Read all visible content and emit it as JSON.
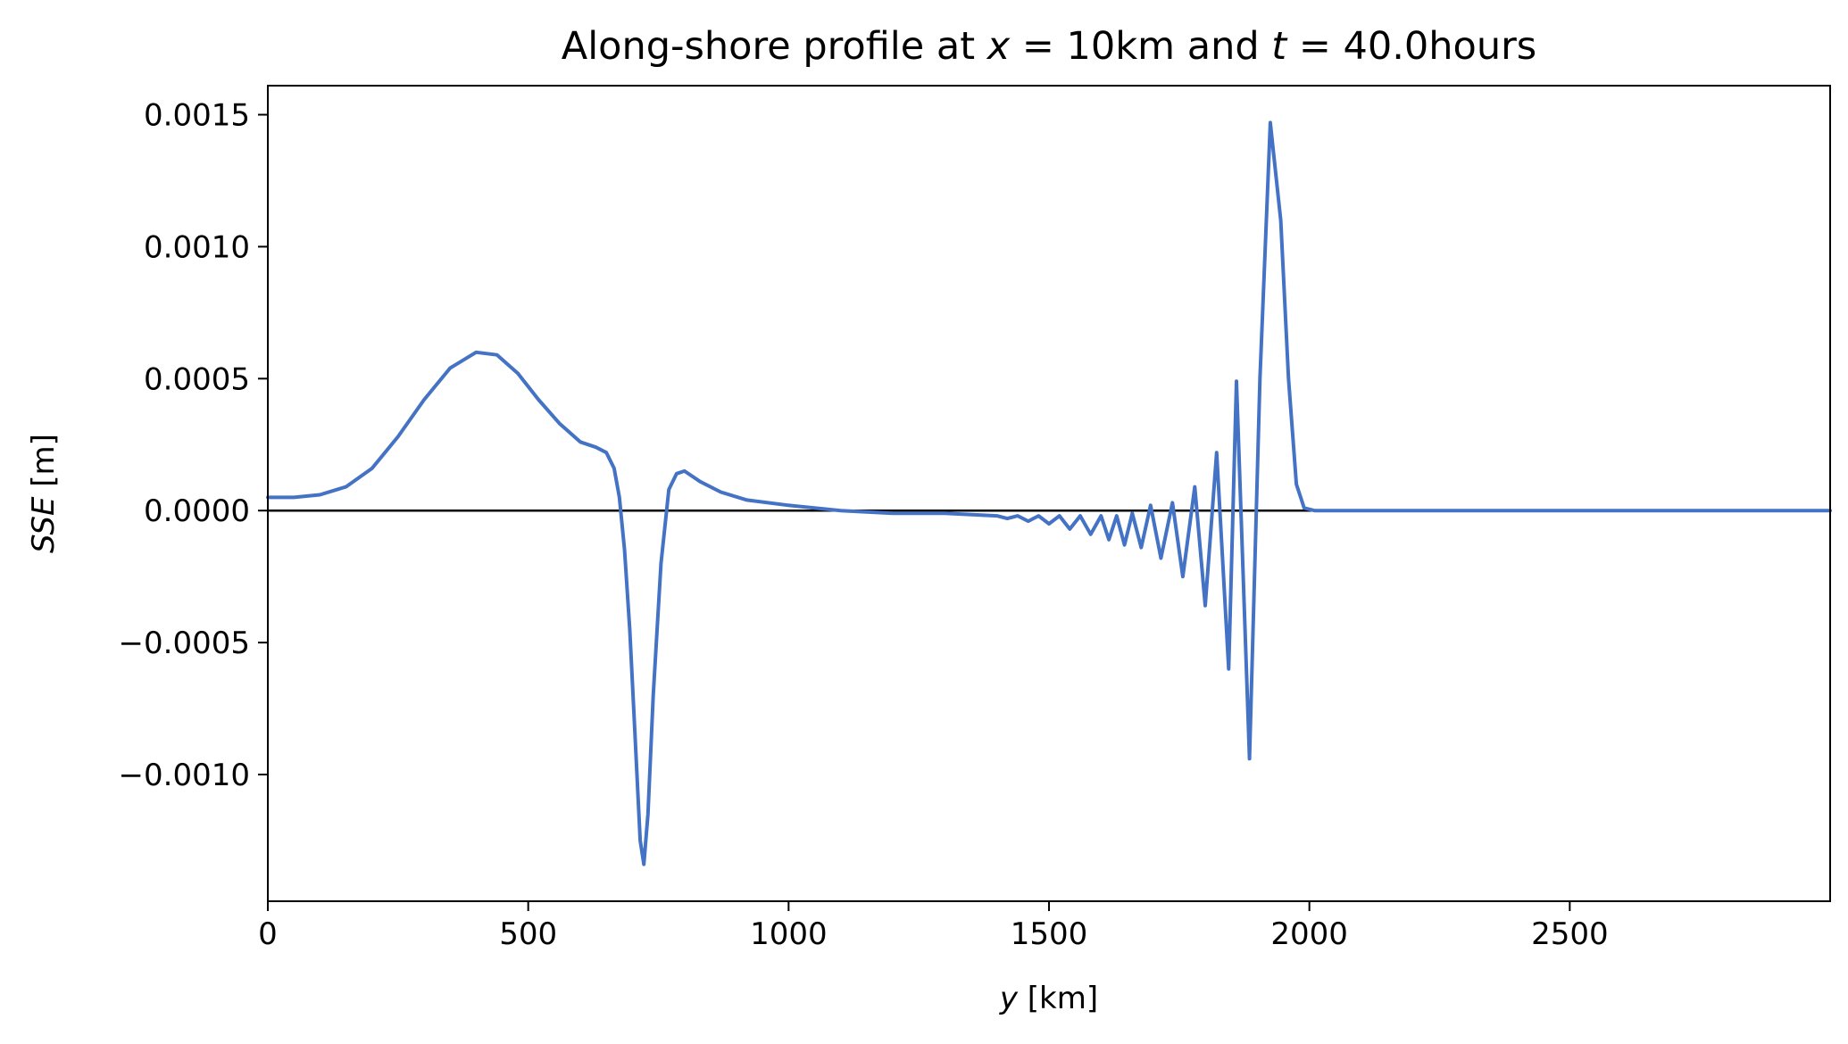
{
  "chart_data": {
    "type": "line",
    "title": {
      "prefix": "Along-shore profile at ",
      "var1": "x",
      "mid1": " = 10km and ",
      "var2": "t",
      "mid2": " = 40.0hours"
    },
    "xlabel": {
      "var": "y",
      "unit": " [km]"
    },
    "ylabel": {
      "var": "SSE",
      "unit": " [m]"
    },
    "xlim": [
      0,
      3000
    ],
    "ylim": [
      -0.00148,
      0.00161
    ],
    "xticks": [
      0,
      500,
      1000,
      1500,
      2000,
      2500
    ],
    "xtick_labels": [
      "0",
      "500",
      "1000",
      "1500",
      "2000",
      "2500"
    ],
    "yticks": [
      0.0015,
      0.001,
      0.0005,
      0.0,
      -0.0005,
      -0.001
    ],
    "ytick_labels": [
      "0.0015",
      "0.0010",
      "0.0005",
      "0.0000",
      "−0.0005",
      "−0.0010"
    ],
    "zero_line": true,
    "grid": false,
    "series": [
      {
        "color": "#4472c4",
        "x": [
          0,
          50,
          100,
          150,
          200,
          250,
          300,
          350,
          400,
          440,
          480,
          520,
          560,
          600,
          630,
          650,
          665,
          675,
          685,
          695,
          705,
          715,
          722,
          730,
          740,
          755,
          770,
          785,
          800,
          830,
          870,
          920,
          1000,
          1100,
          1200,
          1300,
          1400,
          1420,
          1440,
          1460,
          1480,
          1500,
          1520,
          1540,
          1560,
          1580,
          1600,
          1615,
          1630,
          1645,
          1660,
          1677,
          1695,
          1715,
          1737,
          1757,
          1780,
          1800,
          1822,
          1845,
          1860,
          1885,
          1905,
          1925,
          1945,
          1960,
          1975,
          1990,
          2010,
          2030,
          2050,
          2070,
          2090,
          2200,
          2400,
          2600,
          2800,
          3000
        ],
        "y": [
          5e-05,
          5e-05,
          6e-05,
          9e-05,
          0.00016,
          0.00028,
          0.00042,
          0.00054,
          0.0006,
          0.00059,
          0.00052,
          0.00042,
          0.00033,
          0.00026,
          0.00024,
          0.00022,
          0.00016,
          5e-05,
          -0.00015,
          -0.00045,
          -0.00085,
          -0.00125,
          -0.00134,
          -0.00115,
          -0.0007,
          -0.0002,
          8e-05,
          0.00014,
          0.00015,
          0.00011,
          7e-05,
          4e-05,
          2e-05,
          0.0,
          -1e-05,
          -1e-05,
          -2e-05,
          -3e-05,
          -2e-05,
          -4e-05,
          -2e-05,
          -5e-05,
          -2e-05,
          -7e-05,
          -2e-05,
          -9e-05,
          -2e-05,
          -0.00011,
          -2e-05,
          -0.00013,
          -1e-05,
          -0.00014,
          2e-05,
          -0.00018,
          3e-05,
          -0.00025,
          9e-05,
          -0.00036,
          0.00022,
          -0.0006,
          0.00049,
          -0.00094,
          0.0005,
          0.00147,
          0.0011,
          0.0005,
          0.0001,
          1e-05,
          0.0,
          0.0,
          0.0,
          0.0,
          0.0,
          0.0,
          0.0,
          0.0,
          0.0,
          0.0
        ]
      }
    ]
  }
}
